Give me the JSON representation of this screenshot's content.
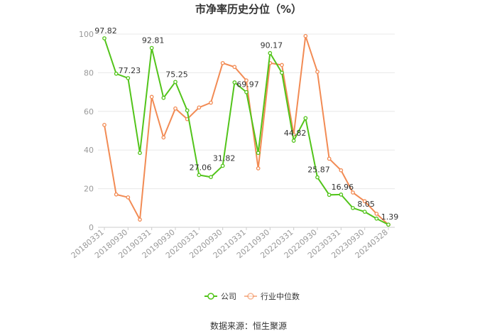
{
  "chart_data": {
    "type": "line",
    "title": "市净率历史分位（%）",
    "source": "数据来源：恒生聚源",
    "ylim": [
      0,
      100
    ],
    "yticks": [
      0,
      20,
      40,
      60,
      80,
      100
    ],
    "grid": true,
    "legend_position": "bottom",
    "x": [
      "20180331",
      "20180630",
      "20180930",
      "20181231",
      "20190331",
      "20190630",
      "20190930",
      "20191231",
      "20200331",
      "20200630",
      "20200930",
      "20201231",
      "20210331",
      "20210630",
      "20210930",
      "20211231",
      "20220331",
      "20220630",
      "20220930",
      "20221231",
      "20230331",
      "20230630",
      "20230930",
      "20231231",
      "20240328"
    ],
    "x_tick_labels": [
      "20180331",
      "20180930",
      "20190331",
      "20190930",
      "20200331",
      "20200930",
      "20210331",
      "20210930",
      "20220331",
      "20220930",
      "20230331",
      "20230930",
      "20240328"
    ],
    "series": [
      {
        "name": "公司",
        "color": "#52c41a",
        "values": [
          97.82,
          79.5,
          77.23,
          38.5,
          92.81,
          67.0,
          75.25,
          60.5,
          27.06,
          26.0,
          31.82,
          75.0,
          69.97,
          38.5,
          90.17,
          80.0,
          44.82,
          56.5,
          25.87,
          16.8,
          16.96,
          10.0,
          8.05,
          4.5,
          1.39
        ]
      },
      {
        "name": "行业中位数",
        "color": "#f28b54",
        "values": [
          53.0,
          17.0,
          15.5,
          4.0,
          67.5,
          46.5,
          61.5,
          56.0,
          62.0,
          64.5,
          85.0,
          83.0,
          76.0,
          30.5,
          85.0,
          84.0,
          48.0,
          99.0,
          80.5,
          35.5,
          29.5,
          18.0,
          13.5,
          7.0,
          1.4
        ]
      }
    ],
    "data_labels": [
      {
        "index": 0,
        "text": "97.82"
      },
      {
        "index": 2,
        "text": "77.23"
      },
      {
        "index": 4,
        "text": "92.81"
      },
      {
        "index": 6,
        "text": "75.25"
      },
      {
        "index": 8,
        "text": "27.06"
      },
      {
        "index": 10,
        "text": "31.82"
      },
      {
        "index": 12,
        "text": "69.97"
      },
      {
        "index": 14,
        "text": "90.17"
      },
      {
        "index": 16,
        "text": "44.82"
      },
      {
        "index": 18,
        "text": "25.87"
      },
      {
        "index": 20,
        "text": "16.96"
      },
      {
        "index": 22,
        "text": "8.05"
      },
      {
        "index": 24,
        "text": "1.39"
      }
    ]
  }
}
